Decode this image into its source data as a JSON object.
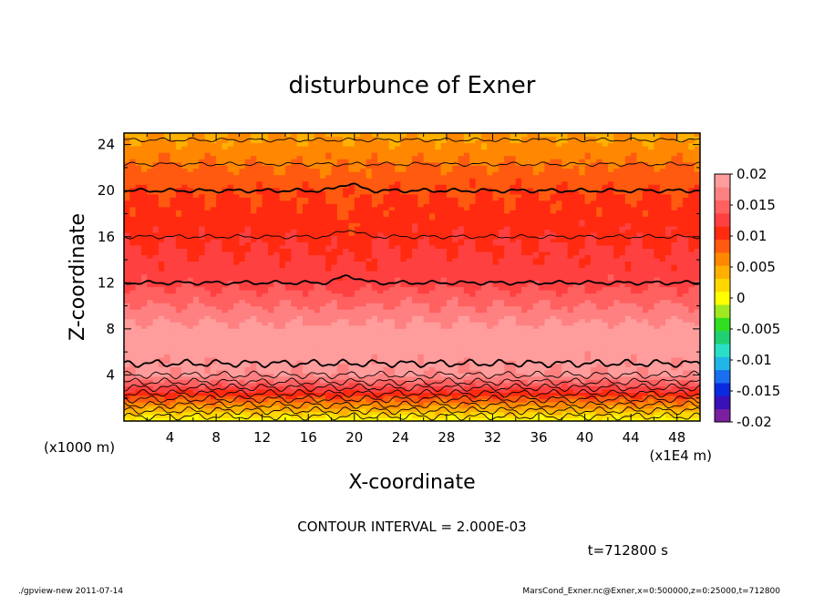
{
  "chart_data": {
    "type": "heatmap",
    "title": "disturbunce of Exner",
    "xlabel": "X-coordinate",
    "ylabel": "Z-coordinate",
    "x_unit_label": "(x1E4 m)",
    "y_unit_label": "(x1000 m)",
    "x_ticks": [
      "4",
      "8",
      "12",
      "16",
      "20",
      "24",
      "28",
      "32",
      "36",
      "40",
      "44",
      "48"
    ],
    "y_ticks": [
      "4",
      "8",
      "12",
      "16",
      "20",
      "24"
    ],
    "xlim": [
      0,
      50
    ],
    "ylim": [
      0,
      25
    ],
    "colorbar": {
      "labels": [
        "0.02",
        "0.015",
        "0.01",
        "0.005",
        "0",
        "-0.005",
        "-0.01",
        "-0.015",
        "-0.02"
      ],
      "values": [
        0.02,
        0.015,
        0.01,
        0.005,
        0,
        -0.005,
        -0.01,
        -0.015,
        -0.02
      ],
      "range": [
        -0.02,
        0.02
      ],
      "colors": [
        "#7a1fa0",
        "#3a10b8",
        "#0a2ae0",
        "#1a6ef0",
        "#21b6e8",
        "#28e0c8",
        "#20d070",
        "#30e020",
        "#a0e820",
        "#ffff00",
        "#ffd800",
        "#ffb000",
        "#ff8800",
        "#ff5a10",
        "#ff2a10",
        "#ff4040",
        "#ff6060",
        "#ff8080",
        "#ff9c9c"
      ]
    },
    "contour_interval_text": "CONTOUR INTERVAL = 2.000E-03",
    "time_text": "t=712800 s"
  },
  "footer": {
    "left": "./gpview-new   2011-07-14",
    "right": "MarsCond_Exner.nc@Exner,x=0:500000,z=0:25000,t=712800"
  }
}
